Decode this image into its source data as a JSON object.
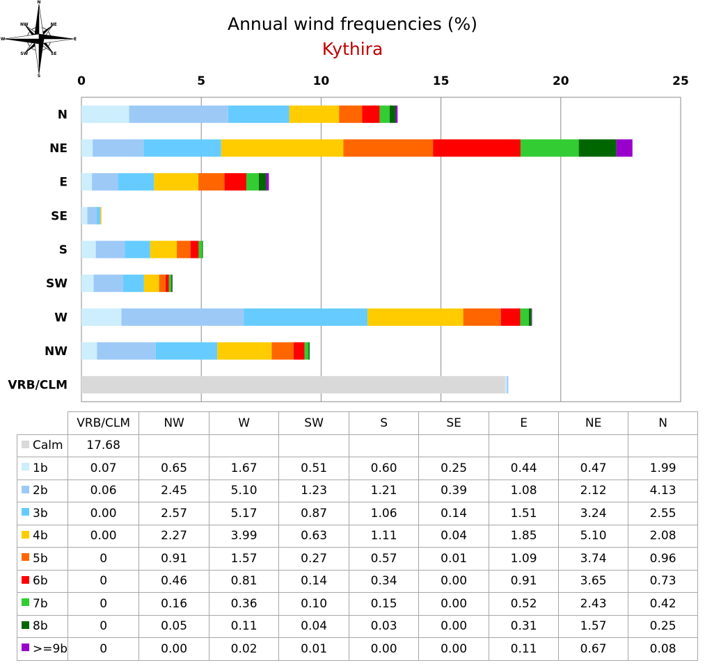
{
  "chart_data": {
    "type": "bar",
    "orientation": "horizontal",
    "stacked": true,
    "title": "Annual wind frequencies (%)",
    "subtitle": "Kythira",
    "xlim": [
      0,
      25
    ],
    "x_ticks": [
      0,
      5,
      10,
      15,
      20,
      25
    ],
    "grid": true,
    "bar_categories": [
      "N",
      "NE",
      "E",
      "SE",
      "S",
      "SW",
      "W",
      "NW",
      "VRB/CLM"
    ],
    "table_columns": [
      "VRB/CLM",
      "NW",
      "W",
      "SW",
      "S",
      "SE",
      "E",
      "NE",
      "N"
    ],
    "series": [
      {
        "name": "Calm",
        "color": "#d9d9d9",
        "values": {
          "VRB/CLM": "17.68"
        }
      },
      {
        "name": "1b",
        "color": "#cdeefc",
        "values": {
          "VRB/CLM": "0.07",
          "NW": "0.65",
          "W": "1.67",
          "SW": "0.51",
          "S": "0.60",
          "SE": "0.25",
          "E": "0.44",
          "NE": "0.47",
          "N": "1.99"
        }
      },
      {
        "name": "2b",
        "color": "#9dc9f7",
        "values": {
          "VRB/CLM": "0.06",
          "NW": "2.45",
          "W": "5.10",
          "SW": "1.23",
          "S": "1.21",
          "SE": "0.39",
          "E": "1.08",
          "NE": "2.12",
          "N": "4.13"
        }
      },
      {
        "name": "3b",
        "color": "#66ccff",
        "values": {
          "VRB/CLM": "0.00",
          "NW": "2.57",
          "W": "5.17",
          "SW": "0.87",
          "S": "1.06",
          "SE": "0.14",
          "E": "1.51",
          "NE": "3.24",
          "N": "2.55"
        }
      },
      {
        "name": "4b",
        "color": "#ffcc00",
        "values": {
          "VRB/CLM": "0.00",
          "NW": "2.27",
          "W": "3.99",
          "SW": "0.63",
          "S": "1.11",
          "SE": "0.04",
          "E": "1.85",
          "NE": "5.10",
          "N": "2.08"
        }
      },
      {
        "name": "5b",
        "color": "#ff6600",
        "values": {
          "VRB/CLM": "0",
          "NW": "0.91",
          "W": "1.57",
          "SW": "0.27",
          "S": "0.57",
          "SE": "0.01",
          "E": "1.09",
          "NE": "3.74",
          "N": "0.96"
        }
      },
      {
        "name": "6b",
        "color": "#ff0000",
        "values": {
          "VRB/CLM": "0",
          "NW": "0.46",
          "W": "0.81",
          "SW": "0.14",
          "S": "0.34",
          "SE": "0.00",
          "E": "0.91",
          "NE": "3.65",
          "N": "0.73"
        }
      },
      {
        "name": "7b",
        "color": "#33cc33",
        "values": {
          "VRB/CLM": "0",
          "NW": "0.16",
          "W": "0.36",
          "SW": "0.10",
          "S": "0.15",
          "SE": "0.00",
          "E": "0.52",
          "NE": "2.43",
          "N": "0.42"
        }
      },
      {
        "name": "8b",
        "color": "#006600",
        "values": {
          "VRB/CLM": "0",
          "NW": "0.05",
          "W": "0.11",
          "SW": "0.04",
          "S": "0.03",
          "SE": "0.00",
          "E": "0.31",
          "NE": "1.57",
          "N": "0.25"
        }
      },
      {
        "name": ">=9b",
        "color": "#9900cc",
        "values": {
          "VRB/CLM": "0",
          "NW": "0.00",
          "W": "0.02",
          "SW": "0.01",
          "S": "0.00",
          "SE": "0.00",
          "E": "0.11",
          "NE": "0.67",
          "N": "0.08"
        }
      }
    ]
  },
  "compass": {
    "labels": [
      "N",
      "NE",
      "E",
      "SE",
      "S",
      "SW",
      "W",
      "NW"
    ]
  }
}
